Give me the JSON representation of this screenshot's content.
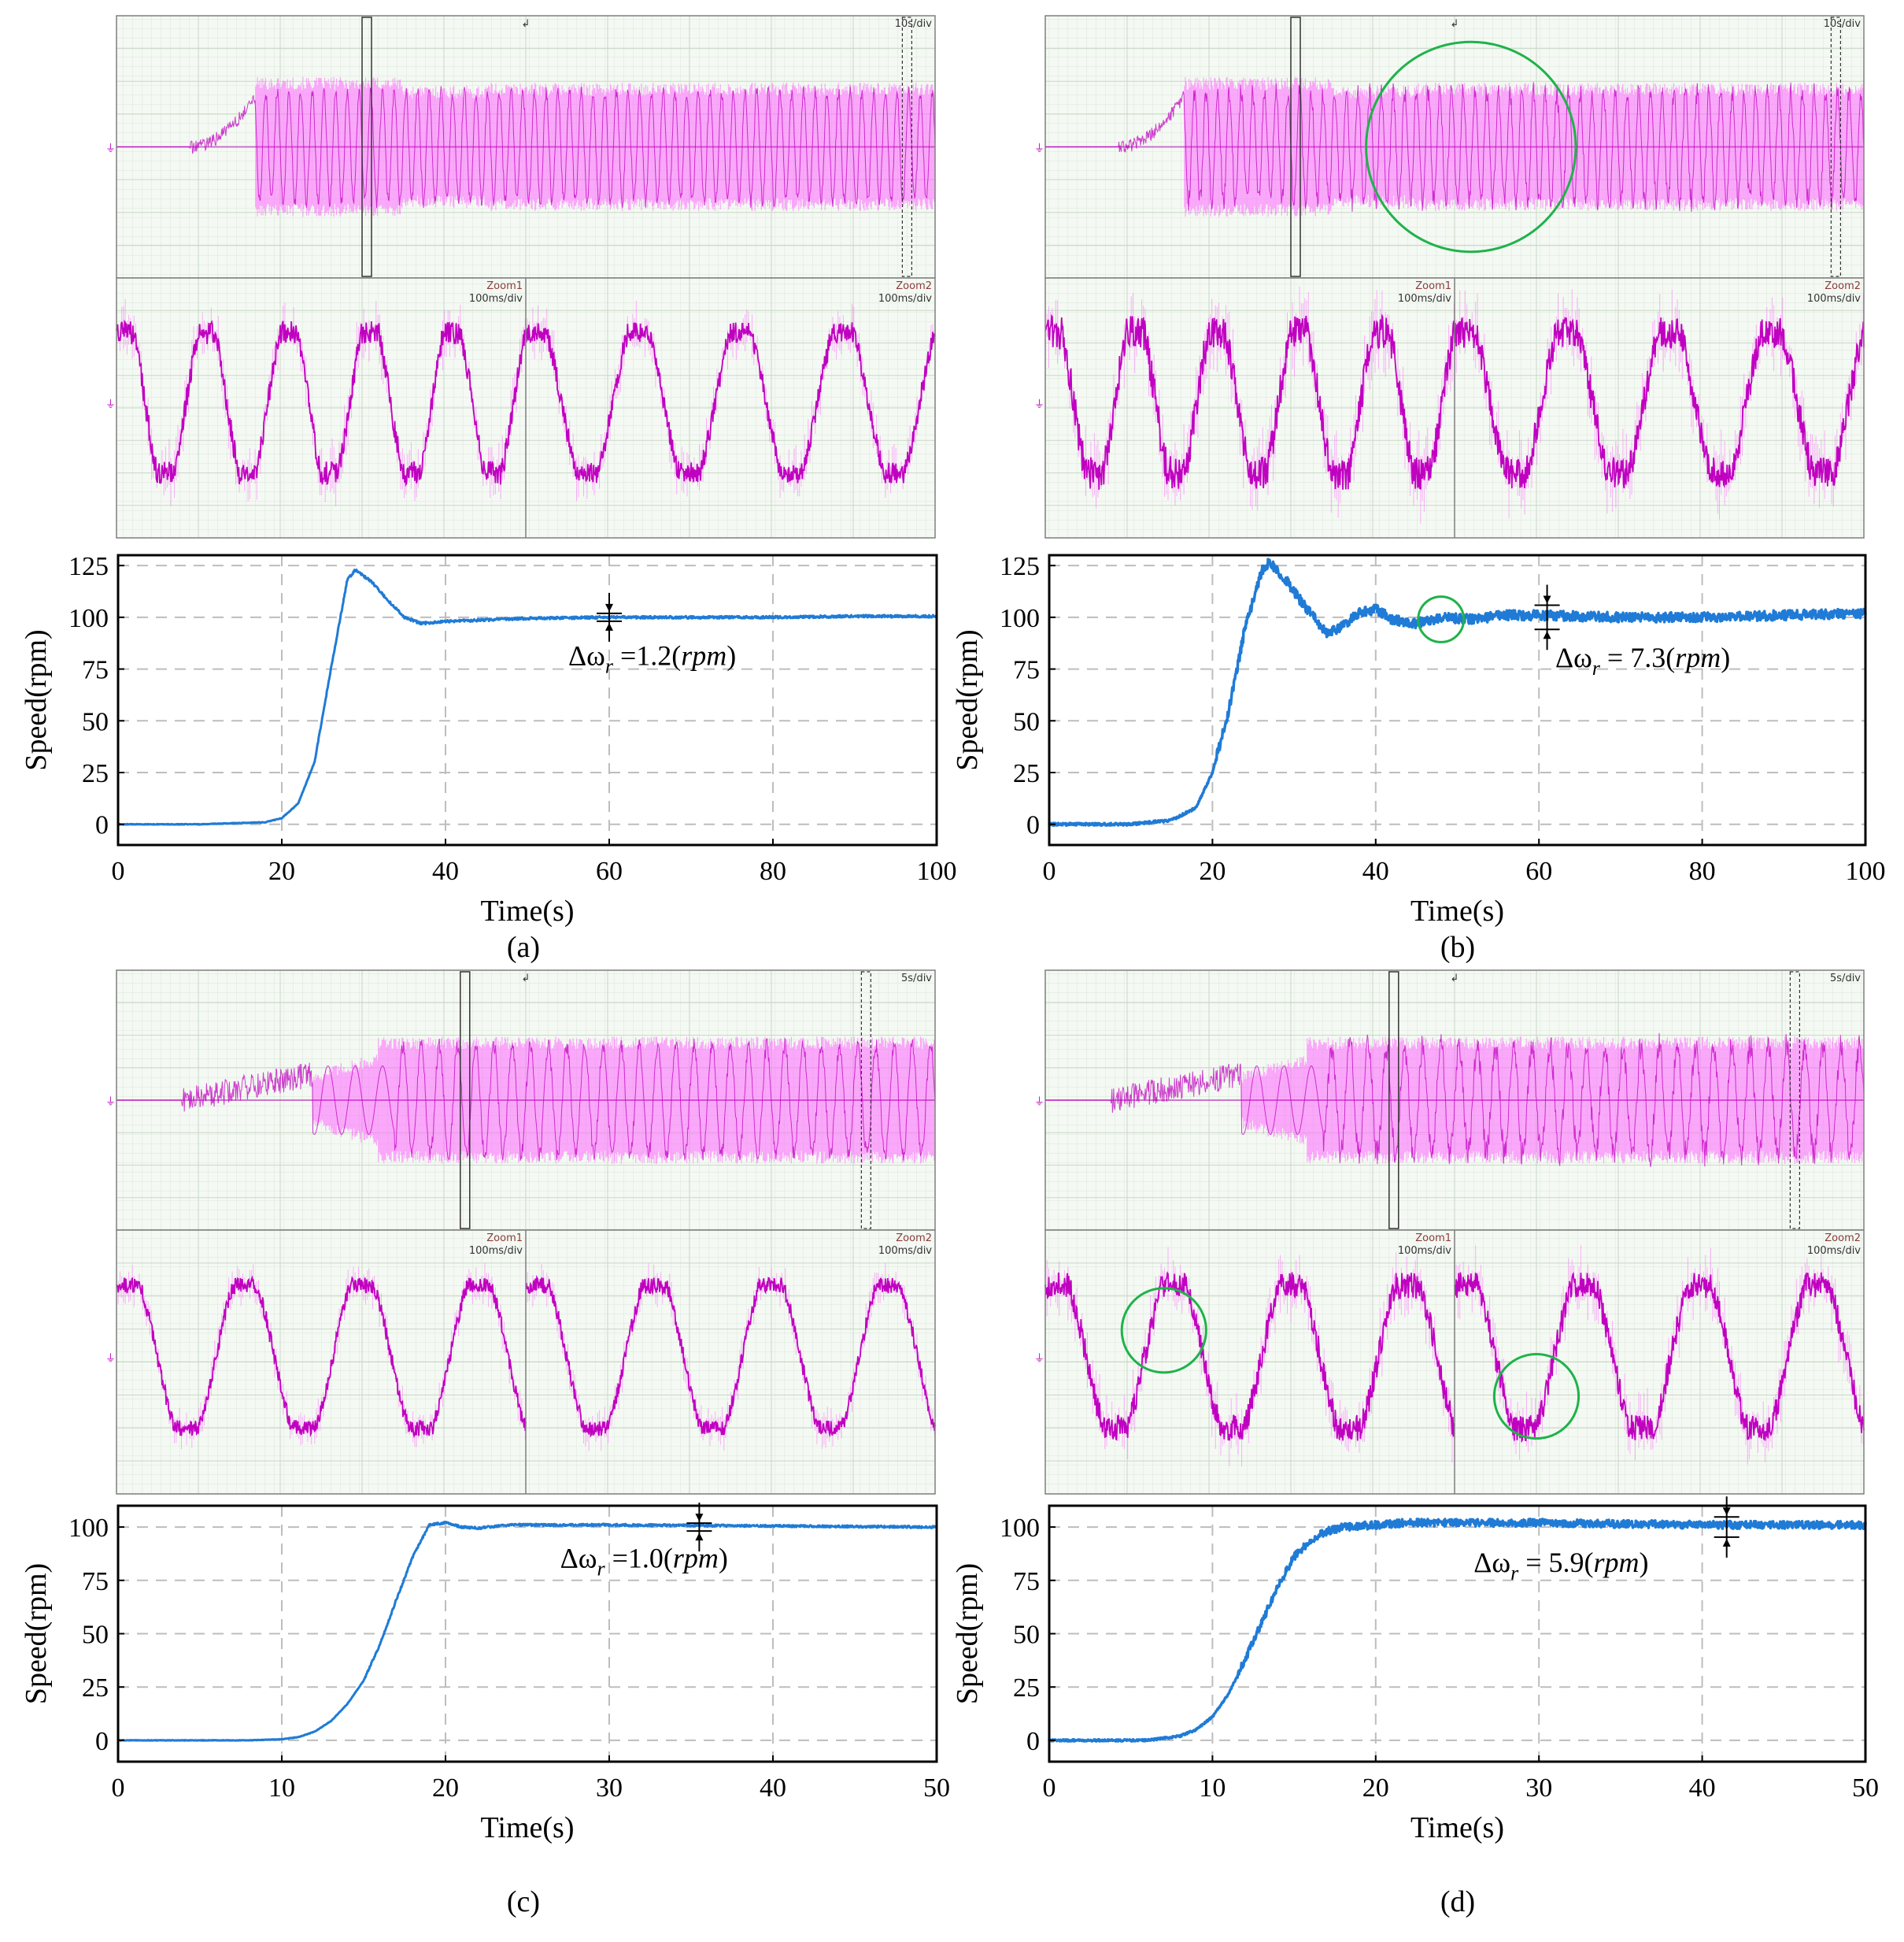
{
  "figure": {
    "colors": {
      "speed": "#1f7bd6",
      "scope_trace": "#c000c0",
      "scope_envelope": "#ff66ff",
      "highlight_circle": "#1fb24a",
      "grid": "#bdbdbd"
    }
  },
  "chart_data": [
    {
      "panel": "(a)",
      "type": "line",
      "xlabel": "Time(s)",
      "ylabel": "Speed(rpm)",
      "xlim": [
        0,
        100
      ],
      "ylim": [
        -10,
        130
      ],
      "xticks": [
        0,
        20,
        40,
        60,
        80,
        100
      ],
      "xtick_labels": [
        "0",
        "20",
        "40",
        "60",
        "80",
        "100"
      ],
      "yticks": [
        0,
        25,
        50,
        75,
        100,
        125
      ],
      "ytick_labels": [
        "0",
        "25",
        "50",
        "75",
        "100",
        "125"
      ],
      "grid": true,
      "annotation": {
        "prefix": "Δω",
        "sub": "r",
        "mid": " =1.2(",
        "unit": "rpm",
        "suffix": ")",
        "value_rpm": 1.2
      },
      "ripple_marker_x": 60,
      "series": [
        {
          "name": "speed",
          "x": [
            0,
            10,
            18,
            20,
            22,
            24,
            26,
            28,
            29,
            31,
            33,
            35,
            37,
            40,
            50,
            60,
            70,
            80,
            90,
            100
          ],
          "y": [
            0,
            0,
            1,
            3,
            10,
            30,
            75,
            118,
            123,
            117,
            108,
            100,
            97,
            98,
            99.5,
            100,
            100,
            100,
            100.5,
            100.5
          ],
          "noise_rpm": 0.6
        }
      ],
      "scope": {
        "overview_time_div": "10s/div",
        "zoom1_label": "Zoom1",
        "zoom1_time_div": "100ms/div",
        "zoom2_label": "Zoom2",
        "zoom2_time_div": "100ms/div",
        "trace": {
          "type": "current_ramp_1",
          "startup_s": 17,
          "noise": 0.05
        },
        "zoom_cycles": [
          5,
          4
        ],
        "zoom_noise": [
          0.09,
          0.08
        ]
      },
      "circles": []
    },
    {
      "panel": "(b)",
      "type": "line",
      "xlabel": "Time(s)",
      "ylabel": "Speed(rpm)",
      "xlim": [
        0,
        100
      ],
      "ylim": [
        -10,
        130
      ],
      "xticks": [
        0,
        20,
        40,
        60,
        80,
        100
      ],
      "xtick_labels": [
        "0",
        "20",
        "40",
        "60",
        "80",
        "100"
      ],
      "yticks": [
        0,
        25,
        50,
        75,
        100,
        125
      ],
      "ytick_labels": [
        "0",
        "25",
        "50",
        "75",
        "100",
        "125"
      ],
      "grid": true,
      "annotation": {
        "prefix": "Δω",
        "sub": "r",
        "mid": " = 7.3(",
        "unit": "rpm",
        "suffix": ")",
        "value_rpm": 7.3
      },
      "ripple_marker_x": 61,
      "series": [
        {
          "name": "speed",
          "x": [
            0,
            10,
            15,
            18,
            20,
            22,
            24,
            26,
            27,
            29,
            31,
            33,
            34,
            36,
            38,
            40,
            42,
            45,
            48,
            52,
            56,
            60,
            70,
            80,
            90,
            100
          ],
          "y": [
            0,
            0,
            2,
            8,
            25,
            55,
            95,
            122,
            127,
            118,
            107,
            97,
            92,
            96,
            102,
            104,
            99,
            97,
            100,
            99,
            101,
            101,
            100,
            100,
            101,
            102
          ],
          "noise_rpm": 2.4
        }
      ],
      "scope": {
        "overview_time_div": "10s/div",
        "zoom1_label": "Zoom1",
        "zoom1_time_div": "100ms/div",
        "zoom2_label": "Zoom2",
        "zoom2_time_div": "100ms/div",
        "trace": {
          "type": "current_ramp_1",
          "startup_s": 17,
          "noise": 0.08
        },
        "zoom_cycles": [
          5,
          4
        ],
        "zoom_noise": [
          0.13,
          0.12
        ]
      },
      "circles": [
        {
          "target": "scope",
          "area": "overview",
          "cx": 0.52,
          "cy": 0.5,
          "r": 0.4
        },
        {
          "target": "chart",
          "x": 48,
          "y": 99,
          "r_data": 11
        }
      ]
    },
    {
      "panel": "(c)",
      "type": "line",
      "xlabel": "Time(s)",
      "ylabel": "Speed(rpm)",
      "xlim": [
        0,
        50
      ],
      "ylim": [
        -10,
        110
      ],
      "xticks": [
        0,
        10,
        20,
        30,
        40,
        50
      ],
      "xtick_labels": [
        "0",
        "10",
        "20",
        "30",
        "40",
        "50"
      ],
      "yticks": [
        0,
        25,
        50,
        75,
        100
      ],
      "ytick_labels": [
        "0",
        "25",
        "50",
        "75",
        "100"
      ],
      "grid": true,
      "annotation": {
        "prefix": "Δω",
        "sub": "r",
        "mid": " =1.0(",
        "unit": "rpm",
        "suffix": ")",
        "value_rpm": 1.0
      },
      "ripple_marker_x": 35.5,
      "series": [
        {
          "name": "speed",
          "x": [
            0,
            8,
            10,
            11,
            12,
            13,
            14,
            15,
            16,
            17,
            18,
            19,
            20,
            21,
            22,
            24,
            30,
            40,
            50
          ],
          "y": [
            0,
            0,
            0.5,
            1.5,
            4,
            9,
            17,
            28,
            45,
            66,
            86,
            101,
            102,
            100,
            99.5,
            101,
            101,
            100.5,
            100
          ],
          "noise_rpm": 0.5
        }
      ],
      "scope": {
        "overview_time_div": "5s/div",
        "zoom1_label": "Zoom1",
        "zoom1_time_div": "100ms/div",
        "zoom2_label": "Zoom2",
        "zoom2_time_div": "100ms/div",
        "trace": {
          "type": "current_ramp_2",
          "startup_s": 14,
          "noise": 0.06
        },
        "zoom_cycles": [
          3.5,
          3.5
        ],
        "zoom_noise": [
          0.06,
          0.06
        ]
      },
      "circles": []
    },
    {
      "panel": "(d)",
      "type": "line",
      "xlabel": "Time(s)",
      "ylabel": "Speed(rpm)",
      "xlim": [
        0,
        50
      ],
      "ylim": [
        -10,
        110
      ],
      "xticks": [
        0,
        10,
        20,
        30,
        40,
        50
      ],
      "xtick_labels": [
        "0",
        "10",
        "20",
        "30",
        "40",
        "50"
      ],
      "yticks": [
        0,
        25,
        50,
        75,
        100
      ],
      "ytick_labels": [
        "0",
        "25",
        "50",
        "75",
        "100"
      ],
      "grid": true,
      "annotation": {
        "prefix": "Δω",
        "sub": "r",
        "mid": " = 5.9(",
        "unit": "rpm",
        "suffix": ")",
        "value_rpm": 5.9
      },
      "ripple_marker_x": 41.5,
      "series": [
        {
          "name": "speed",
          "x": [
            0,
            6,
            8,
            9,
            10,
            11,
            12,
            13,
            14,
            15,
            16,
            17,
            18,
            20,
            22,
            30,
            40,
            50
          ],
          "y": [
            0,
            0,
            2,
            5,
            11,
            22,
            38,
            55,
            72,
            86,
            94,
            98,
            100,
            101,
            102,
            102,
            101,
            101
          ],
          "noise_rpm": 1.8
        }
      ],
      "scope": {
        "overview_time_div": "5s/div",
        "zoom1_label": "Zoom1",
        "zoom1_time_div": "100ms/div",
        "zoom2_label": "Zoom2",
        "zoom2_time_div": "100ms/div",
        "trace": {
          "type": "current_ramp_2",
          "startup_s": 14,
          "noise": 0.1
        },
        "zoom_cycles": [
          3.5,
          3.5
        ],
        "zoom_noise": [
          0.1,
          0.1
        ]
      },
      "circles": [
        {
          "target": "scope",
          "area": "zoom1",
          "cx": 0.29,
          "cy": 0.38,
          "r": 0.16
        },
        {
          "target": "scope",
          "area": "zoom2",
          "cx": 0.2,
          "cy": 0.63,
          "r": 0.16
        }
      ]
    }
  ]
}
